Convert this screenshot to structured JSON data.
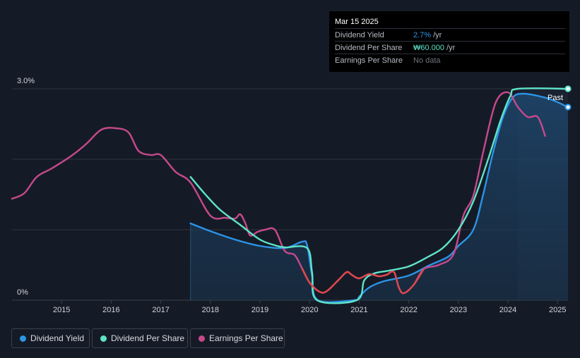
{
  "chart_data": {
    "type": "line",
    "y_axis_ticks": [
      "3.0%",
      "0%"
    ],
    "x_axis_ticks": [
      "2015",
      "2016",
      "2017",
      "2018",
      "2019",
      "2020",
      "2021",
      "2022",
      "2023",
      "2024",
      "2025"
    ],
    "xlim": [
      2014.0,
      2025.21
    ],
    "ylim": [
      0,
      3.0
    ],
    "grid": "horizontal",
    "past_label": "Past",
    "series": [
      {
        "name": "Dividend Yield",
        "color": "#2b94e6",
        "area": true,
        "points": [
          [
            2017.6,
            1.09
          ],
          [
            2018.0,
            0.98
          ],
          [
            2018.5,
            0.86
          ],
          [
            2019.0,
            0.77
          ],
          [
            2019.5,
            0.74
          ],
          [
            2019.85,
            0.83
          ],
          [
            2019.95,
            0.78
          ],
          [
            2020.05,
            0.35
          ],
          [
            2020.17,
            0.0
          ],
          [
            2020.9,
            0.0
          ],
          [
            2021.0,
            0.05
          ],
          [
            2021.2,
            0.18
          ],
          [
            2021.5,
            0.27
          ],
          [
            2022.0,
            0.35
          ],
          [
            2022.4,
            0.49
          ],
          [
            2022.8,
            0.62
          ],
          [
            2023.0,
            0.77
          ],
          [
            2023.3,
            1.0
          ],
          [
            2023.5,
            1.5
          ],
          [
            2023.7,
            2.1
          ],
          [
            2023.9,
            2.6
          ],
          [
            2024.1,
            2.88
          ],
          [
            2024.3,
            2.93
          ],
          [
            2024.6,
            2.9
          ],
          [
            2024.9,
            2.84
          ],
          [
            2025.21,
            2.74
          ]
        ]
      },
      {
        "name": "Dividend Per Share",
        "color": "#5fe3c9",
        "area": false,
        "points": [
          [
            2017.6,
            1.75
          ],
          [
            2017.9,
            1.5
          ],
          [
            2018.2,
            1.28
          ],
          [
            2018.6,
            1.07
          ],
          [
            2019.0,
            0.86
          ],
          [
            2019.3,
            0.78
          ],
          [
            2019.5,
            0.75
          ],
          [
            2019.95,
            0.74
          ],
          [
            2020.05,
            0.4
          ],
          [
            2020.15,
            0.0
          ],
          [
            2020.95,
            0.0
          ],
          [
            2021.1,
            0.28
          ],
          [
            2021.3,
            0.38
          ],
          [
            2021.6,
            0.42
          ],
          [
            2022.0,
            0.48
          ],
          [
            2022.4,
            0.62
          ],
          [
            2022.7,
            0.75
          ],
          [
            2023.0,
            1.0
          ],
          [
            2023.3,
            1.4
          ],
          [
            2023.6,
            2.0
          ],
          [
            2023.85,
            2.55
          ],
          [
            2024.05,
            2.9
          ],
          [
            2024.2,
            3.0
          ],
          [
            2025.21,
            3.0
          ]
        ]
      },
      {
        "name": "Earnings Per Share",
        "color": "#c6498c",
        "area": false,
        "points": [
          [
            2014.0,
            1.44
          ],
          [
            2014.25,
            1.52
          ],
          [
            2014.5,
            1.75
          ],
          [
            2014.8,
            1.87
          ],
          [
            2015.2,
            2.05
          ],
          [
            2015.5,
            2.22
          ],
          [
            2015.8,
            2.42
          ],
          [
            2016.1,
            2.44
          ],
          [
            2016.35,
            2.38
          ],
          [
            2016.55,
            2.12
          ],
          [
            2016.8,
            2.06
          ],
          [
            2017.0,
            2.06
          ],
          [
            2017.3,
            1.82
          ],
          [
            2017.6,
            1.67
          ],
          [
            2018.0,
            1.2
          ],
          [
            2018.3,
            1.17
          ],
          [
            2018.5,
            1.16
          ],
          [
            2018.6,
            1.22
          ],
          [
            2018.7,
            1.1
          ],
          [
            2018.8,
            0.92
          ],
          [
            2018.95,
            0.97
          ],
          [
            2019.1,
            1.0
          ],
          [
            2019.3,
            1.0
          ],
          [
            2019.5,
            0.7
          ],
          [
            2019.7,
            0.64
          ],
          [
            2019.85,
            0.45
          ],
          [
            2020.0,
            0.25
          ],
          [
            2020.2,
            0.12
          ],
          [
            2020.35,
            0.13
          ],
          [
            2020.6,
            0.3
          ],
          [
            2020.75,
            0.4
          ],
          [
            2020.85,
            0.36
          ],
          [
            2021.0,
            0.31
          ],
          [
            2021.2,
            0.37
          ],
          [
            2021.4,
            0.34
          ],
          [
            2021.55,
            0.36
          ],
          [
            2021.7,
            0.4
          ],
          [
            2021.8,
            0.18
          ],
          [
            2021.9,
            0.1
          ],
          [
            2022.1,
            0.22
          ],
          [
            2022.3,
            0.44
          ],
          [
            2022.6,
            0.5
          ],
          [
            2022.9,
            0.65
          ],
          [
            2023.1,
            1.2
          ],
          [
            2023.3,
            1.48
          ],
          [
            2023.5,
            2.1
          ],
          [
            2023.75,
            2.8
          ],
          [
            2024.0,
            2.95
          ],
          [
            2024.2,
            2.74
          ],
          [
            2024.4,
            2.6
          ],
          [
            2024.6,
            2.6
          ],
          [
            2024.75,
            2.33
          ]
        ]
      }
    ],
    "end_markers": [
      {
        "series": "Dividend Per Share",
        "x": 2025.21,
        "y": 3.0
      },
      {
        "series": "Dividend Yield",
        "x": 2025.21,
        "y": 2.74
      }
    ]
  },
  "tooltip": {
    "date": "Mar 15 2025",
    "rows": [
      {
        "label": "Dividend Yield",
        "value": "2.7%",
        "unit": "/yr",
        "color": "#2b94e6"
      },
      {
        "label": "Dividend Per Share",
        "value": "₩60.000",
        "unit": "/yr",
        "color": "#5fe3c9"
      },
      {
        "label": "Earnings Per Share",
        "value": "No data",
        "unit": "",
        "color": "#6d737b"
      }
    ]
  },
  "legend": [
    {
      "label": "Dividend Yield",
      "color": "#2b94e6"
    },
    {
      "label": "Dividend Per Share",
      "color": "#5fe3c9"
    },
    {
      "label": "Earnings Per Share",
      "color": "#c6498c"
    }
  ]
}
